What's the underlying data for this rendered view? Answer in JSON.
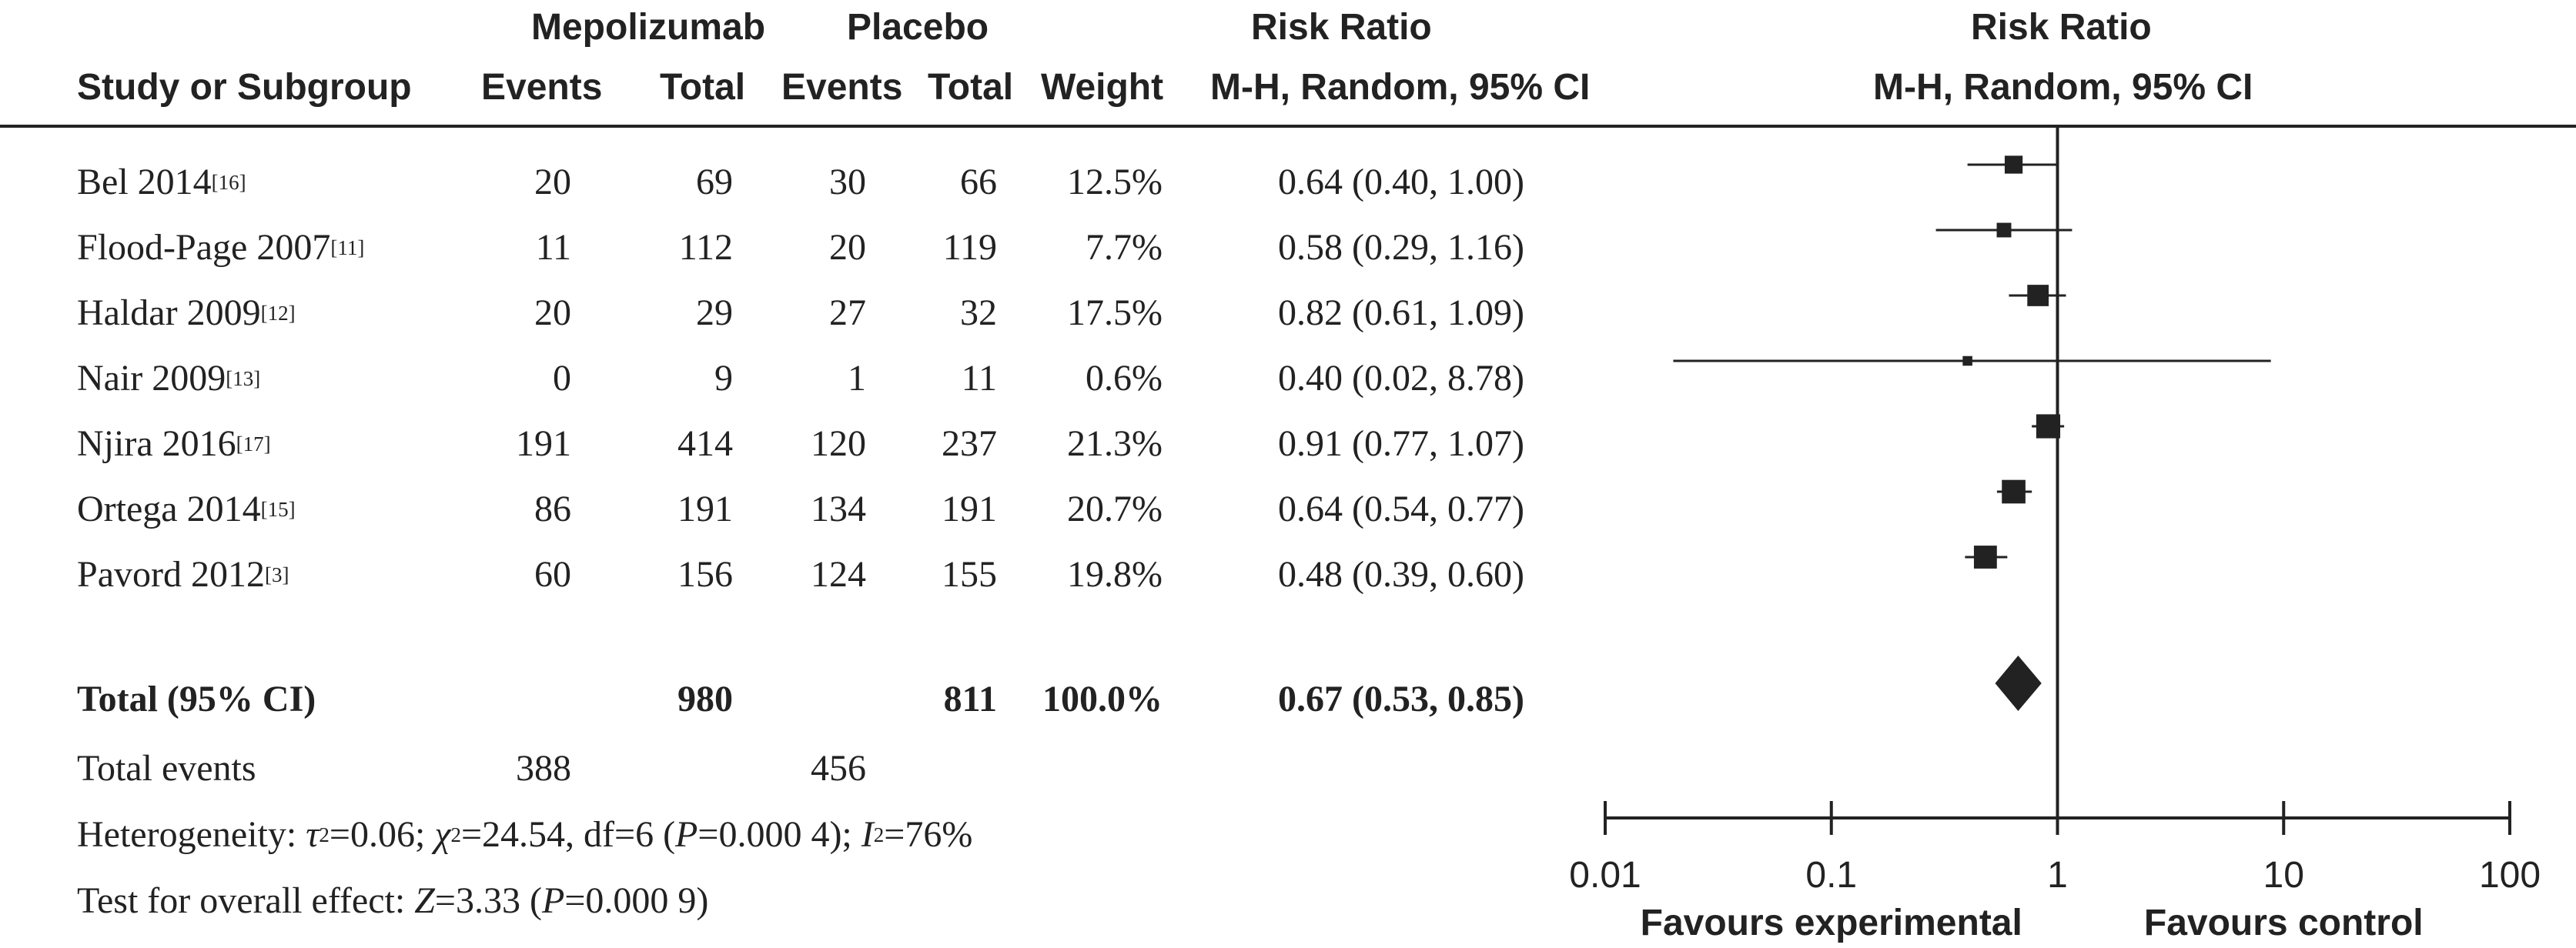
{
  "headers": {
    "group1": "Mepolizumab",
    "group2": "Placebo",
    "rr_top": "Risk Ratio",
    "plot_top": "Risk Ratio",
    "study": "Study or Subgroup",
    "events1": "Events",
    "total1": "Total",
    "events2": "Events",
    "total2": "Total",
    "weight": "Weight",
    "method": "M-H, Random, 95% CI",
    "plot_method": "M-H, Random, 95% CI"
  },
  "studies": [
    {
      "name": "Bel 2014",
      "ref": "[16]",
      "e1": "20",
      "t1": "69",
      "e2": "30",
      "t2": "66",
      "weight": "12.5%",
      "ci_text": "0.64 (0.40, 1.00)"
    },
    {
      "name": "Flood-Page 2007",
      "ref": "[11]",
      "e1": "11",
      "t1": "112",
      "e2": "20",
      "t2": "119",
      "weight": "7.7%",
      "ci_text": "0.58 (0.29, 1.16)"
    },
    {
      "name": "Haldar 2009",
      "ref": "[12]",
      "e1": "20",
      "t1": "29",
      "e2": "27",
      "t2": "32",
      "weight": "17.5%",
      "ci_text": "0.82 (0.61, 1.09)"
    },
    {
      "name": "Nair 2009",
      "ref": "[13]",
      "e1": "0",
      "t1": "9",
      "e2": "1",
      "t2": "11",
      "weight": "0.6%",
      "ci_text": "0.40 (0.02, 8.78)"
    },
    {
      "name": "Njira 2016",
      "ref": "[17]",
      "e1": "191",
      "t1": "414",
      "e2": "120",
      "t2": "237",
      "weight": "21.3%",
      "ci_text": "0.91 (0.77, 1.07)"
    },
    {
      "name": "Ortega 2014",
      "ref": "[15]",
      "e1": "86",
      "t1": "191",
      "e2": "134",
      "t2": "191",
      "weight": "20.7%",
      "ci_text": "0.64 (0.54, 0.77)"
    },
    {
      "name": "Pavord 2012",
      "ref": "[3]",
      "e1": "60",
      "t1": "156",
      "e2": "124",
      "t2": "155",
      "weight": "19.8%",
      "ci_text": "0.48 (0.39, 0.60)"
    }
  ],
  "total": {
    "label": "Total (95% CI)",
    "t1": "980",
    "t2": "811",
    "weight": "100.0%",
    "ci_text": "0.67 (0.53, 0.85)"
  },
  "total_events": {
    "label": "Total events",
    "e1": "388",
    "e2": "456"
  },
  "heterogeneity": {
    "prefix": "Heterogeneity: ",
    "tau": "τ",
    "tau_val": "=0.06; ",
    "chi": "χ",
    "chi_val": "=24.54, df=6 (",
    "p": "P",
    "p_val": "=0.000 4); ",
    "i": "I",
    "i_val": "=76%"
  },
  "overall": {
    "prefix": "Test for overall effect: ",
    "z": "Z",
    "z_val": "=3.33 (",
    "p": "P",
    "p_val": "=0.000 9)"
  },
  "chart_data": {
    "type": "forest",
    "scale": "log",
    "xlim": [
      0.01,
      100
    ],
    "reference_line": 1,
    "xticks": [
      "0.01",
      "0.1",
      "1",
      "10",
      "100"
    ],
    "favours_left": "Favours experimental",
    "favours_right": "Favours control",
    "points": [
      {
        "study": "Bel 2014",
        "rr": 0.64,
        "lo": 0.4,
        "hi": 1.0,
        "weight": 12.5
      },
      {
        "study": "Flood-Page 2007",
        "rr": 0.58,
        "lo": 0.29,
        "hi": 1.16,
        "weight": 7.7
      },
      {
        "study": "Haldar 2009",
        "rr": 0.82,
        "lo": 0.61,
        "hi": 1.09,
        "weight": 17.5
      },
      {
        "study": "Nair 2009",
        "rr": 0.4,
        "lo": 0.02,
        "hi": 8.78,
        "weight": 0.6
      },
      {
        "study": "Njira 2016",
        "rr": 0.91,
        "lo": 0.77,
        "hi": 1.07,
        "weight": 21.3
      },
      {
        "study": "Ortega 2014",
        "rr": 0.64,
        "lo": 0.54,
        "hi": 0.77,
        "weight": 20.7
      },
      {
        "study": "Pavord 2012",
        "rr": 0.48,
        "lo": 0.39,
        "hi": 0.6,
        "weight": 19.8
      }
    ],
    "pooled": {
      "rr": 0.67,
      "lo": 0.53,
      "hi": 0.85
    }
  }
}
